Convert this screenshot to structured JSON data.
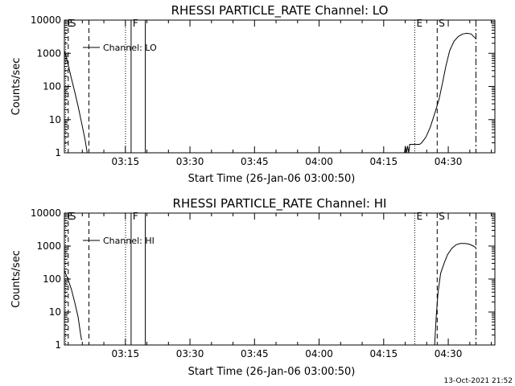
{
  "chart_data": [
    {
      "type": "line",
      "title": "RHESSI PARTICLE_RATE Channel: LO",
      "xlabel": "Start Time (26-Jan-06 03:00:50)",
      "ylabel": "Counts/sec",
      "yscale": "log",
      "ylim": [
        1,
        10000
      ],
      "xlim_minutes": [
        0,
        100
      ],
      "x_ticks": [
        {
          "label": "03:15",
          "minutes": 14.17
        },
        {
          "label": "03:30",
          "minutes": 29.17
        },
        {
          "label": "03:45",
          "minutes": 44.17
        },
        {
          "label": "04:00",
          "minutes": 59.17
        },
        {
          "label": "04:15",
          "minutes": 74.17
        },
        {
          "label": "04:30",
          "minutes": 89.17
        }
      ],
      "y_ticks": [
        "1",
        "10",
        "100",
        "1000",
        "10000"
      ],
      "legend": {
        "label": "Channel: LO",
        "placement": "top-left"
      },
      "markers": [
        {
          "label": "E",
          "minutes": 0.3,
          "style": "dotted"
        },
        {
          "label": "S",
          "minutes": 0.9,
          "style": "dashed"
        },
        {
          "label": "",
          "minutes": 5.7,
          "style": "dashed"
        },
        {
          "label": "",
          "minutes": 14.2,
          "style": "dotted"
        },
        {
          "label": "F",
          "minutes": 15.5,
          "style": "solid"
        },
        {
          "label": "",
          "minutes": 18.8,
          "style": "solid"
        },
        {
          "label": "E",
          "minutes": 81.4,
          "style": "dotted"
        },
        {
          "label": "S",
          "minutes": 86.6,
          "style": "dashed"
        },
        {
          "label": "",
          "minutes": 95.6,
          "style": "dashdot"
        }
      ],
      "series": [
        {
          "name": "Channel: LO",
          "points": [
            [
              0.0,
              1200
            ],
            [
              0.8,
              500
            ],
            [
              1.6,
              180
            ],
            [
              2.4,
              70
            ],
            [
              3.2,
              25
            ],
            [
              4.0,
              8
            ],
            [
              4.8,
              2.5
            ],
            [
              5.3,
              1.0
            ],
            [
              79.0,
              1.0
            ],
            [
              79.2,
              1.6
            ],
            [
              79.5,
              1.0
            ],
            [
              79.7,
              1.6
            ],
            [
              80.0,
              1.0
            ],
            [
              80.2,
              1.8
            ],
            [
              82.5,
              1.8
            ],
            [
              83.0,
              2.0
            ],
            [
              84.0,
              3.0
            ],
            [
              85.0,
              6.0
            ],
            [
              86.0,
              15
            ],
            [
              87.0,
              40
            ],
            [
              87.8,
              120
            ],
            [
              88.6,
              400
            ],
            [
              89.5,
              1200
            ],
            [
              90.5,
              2300
            ],
            [
              91.5,
              3200
            ],
            [
              92.5,
              3800
            ],
            [
              93.5,
              4000
            ],
            [
              94.5,
              3800
            ],
            [
              95.5,
              2800
            ]
          ]
        }
      ]
    },
    {
      "type": "line",
      "title": "RHESSI PARTICLE_RATE Channel: HI",
      "xlabel": "Start Time (26-Jan-06 03:00:50)",
      "ylabel": "Counts/sec",
      "yscale": "log",
      "ylim": [
        1,
        10000
      ],
      "xlim_minutes": [
        0,
        100
      ],
      "x_ticks": [
        {
          "label": "03:15",
          "minutes": 14.17
        },
        {
          "label": "03:30",
          "minutes": 29.17
        },
        {
          "label": "03:45",
          "minutes": 44.17
        },
        {
          "label": "04:00",
          "minutes": 59.17
        },
        {
          "label": "04:15",
          "minutes": 74.17
        },
        {
          "label": "04:30",
          "minutes": 89.17
        }
      ],
      "y_ticks": [
        "1",
        "10",
        "100",
        "1000",
        "10000"
      ],
      "legend": {
        "label": "Channel: HI",
        "placement": "top-left"
      },
      "markers": [
        {
          "label": "E",
          "minutes": 0.3,
          "style": "dotted"
        },
        {
          "label": "S",
          "minutes": 0.9,
          "style": "dashed"
        },
        {
          "label": "",
          "minutes": 5.7,
          "style": "dashed"
        },
        {
          "label": "",
          "minutes": 14.2,
          "style": "dotted"
        },
        {
          "label": "F",
          "minutes": 15.5,
          "style": "solid"
        },
        {
          "label": "",
          "minutes": 18.8,
          "style": "solid"
        },
        {
          "label": "E",
          "minutes": 81.4,
          "style": "dotted"
        },
        {
          "label": "S",
          "minutes": 86.6,
          "style": "dashed"
        },
        {
          "label": "",
          "minutes": 95.6,
          "style": "dashdot"
        }
      ],
      "series": [
        {
          "name": "Channel: HI",
          "points": [
            [
              0.0,
              180
            ],
            [
              0.8,
              100
            ],
            [
              1.6,
              50
            ],
            [
              2.4,
              20
            ],
            [
              3.2,
              7
            ],
            [
              3.8,
              2.0
            ],
            [
              4.0,
              1.4
            ],
            [
              86.0,
              1.0
            ],
            [
              86.4,
              8
            ],
            [
              86.8,
              40
            ],
            [
              87.4,
              150
            ],
            [
              88.2,
              300
            ],
            [
              89.0,
              550
            ],
            [
              90.0,
              850
            ],
            [
              91.0,
              1100
            ],
            [
              92.0,
              1200
            ],
            [
              93.0,
              1200
            ],
            [
              94.0,
              1150
            ],
            [
              95.0,
              1000
            ],
            [
              95.6,
              900
            ]
          ]
        }
      ]
    }
  ],
  "timestamp": "13-Oct-2021 21:52"
}
